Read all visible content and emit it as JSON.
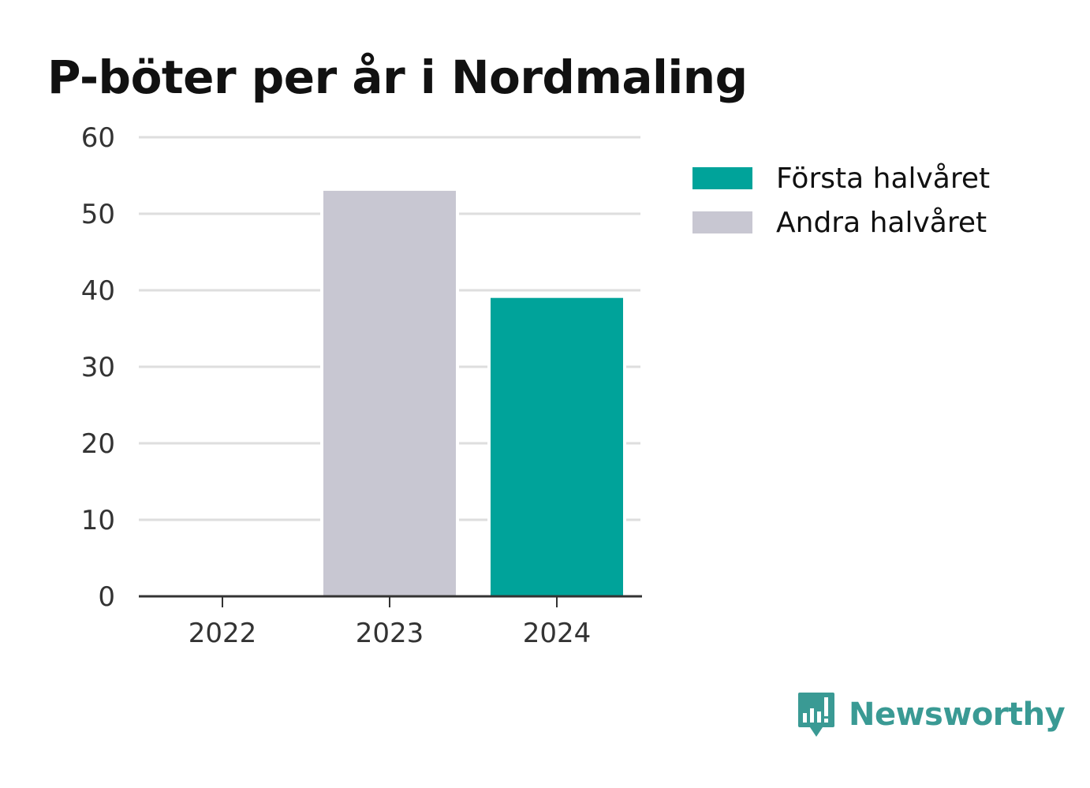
{
  "colors": {
    "forsta": "#00a39a",
    "andra": "#c8c7d2",
    "grid": "#dedede",
    "axis": "#333333",
    "brand": "#3a9a94"
  },
  "chart_data": {
    "type": "bar",
    "title": "P-böter per år i Nordmaling",
    "categories": [
      "2022",
      "2023",
      "2024"
    ],
    "series": [
      {
        "name": "Första halvåret",
        "values": [
          0,
          0,
          39
        ],
        "color": "#00a39a"
      },
      {
        "name": "Andra halvåret",
        "values": [
          0,
          53,
          0
        ],
        "color": "#c8c7d2"
      }
    ],
    "stacked": true,
    "ylim": [
      0,
      60
    ],
    "yticks": [
      "0",
      "10",
      "20",
      "30",
      "40",
      "50",
      "60"
    ],
    "grid": true,
    "legend": "right"
  },
  "legend": {
    "items": [
      {
        "label": "Första halvåret",
        "color": "#00a39a"
      },
      {
        "label": "Andra halvåret",
        "color": "#c8c7d2"
      }
    ]
  },
  "brand": {
    "name": "Newsworthy",
    "icon": "newsworthy-logo-icon"
  }
}
